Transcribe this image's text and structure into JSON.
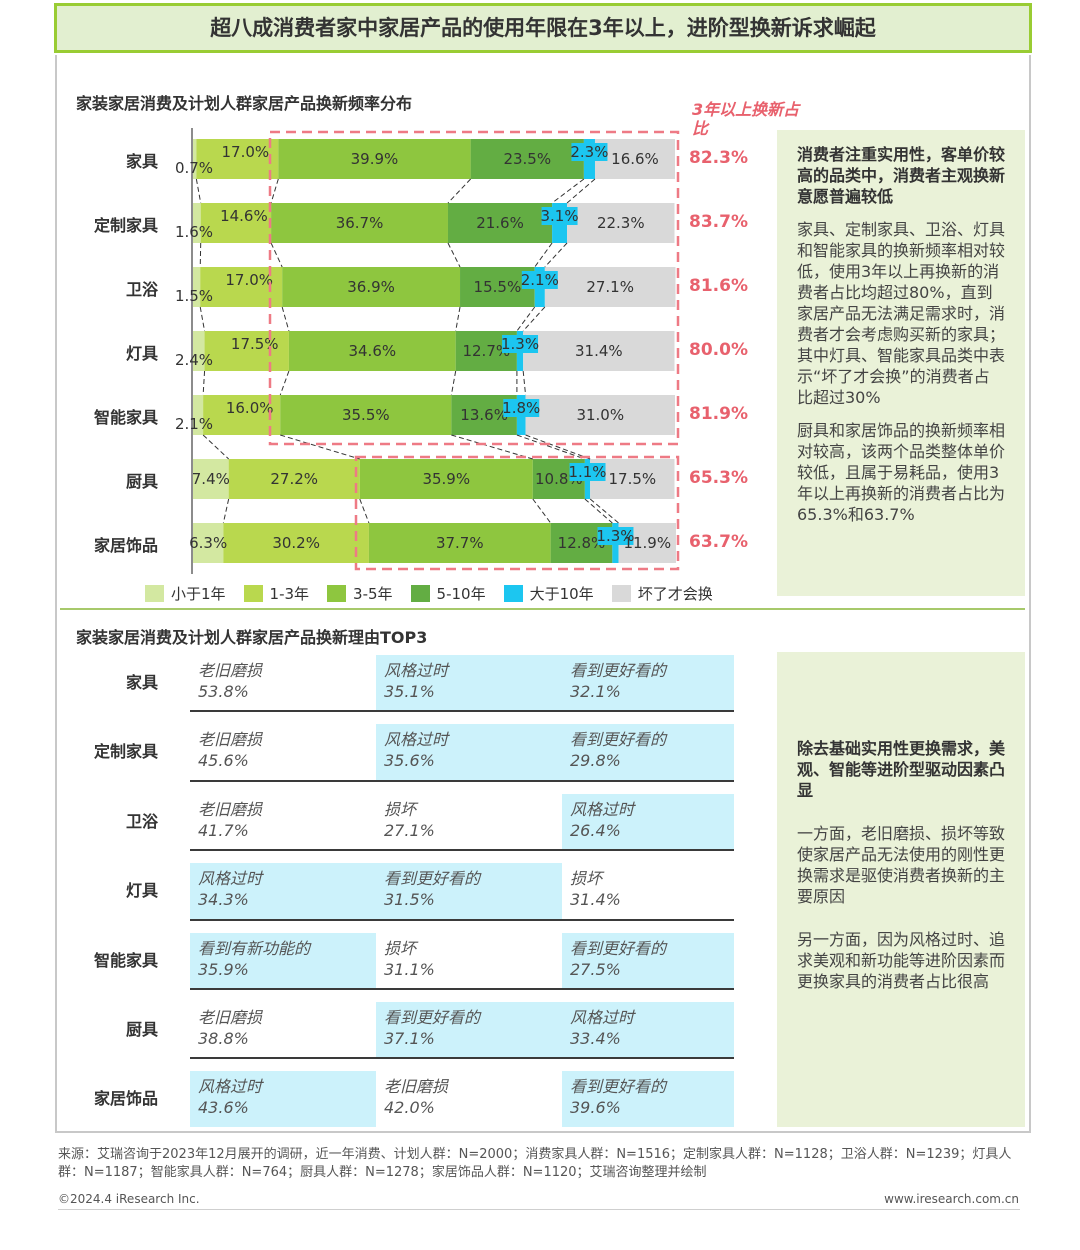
{
  "header": {
    "title": "超八成消费者家中家居产品的使用年限在3年以上，进阶型换新诉求崛起"
  },
  "chart_data": {
    "type": "bar",
    "title": "家装家居消费及计划人群家居产品换新频率分布",
    "orientation": "horizontal",
    "stacked": true,
    "categories": [
      "家具",
      "定制家具",
      "卫浴",
      "灯具",
      "智能家具",
      "厨具",
      "家居饰品"
    ],
    "series": [
      {
        "name": "小于1年",
        "color": "#d3e8a1",
        "values": [
          0.7,
          1.6,
          1.5,
          2.4,
          2.1,
          7.4,
          6.3
        ]
      },
      {
        "name": "1-3年",
        "color": "#b9d84e",
        "values": [
          17.0,
          14.6,
          17.0,
          17.5,
          16.0,
          27.2,
          30.2
        ]
      },
      {
        "name": "3-5年",
        "color": "#8ec63f",
        "values": [
          39.9,
          36.7,
          36.9,
          34.6,
          35.5,
          35.9,
          37.7
        ]
      },
      {
        "name": "5-10年",
        "color": "#63ad43",
        "values": [
          23.5,
          21.6,
          15.5,
          12.7,
          13.6,
          10.8,
          12.8
        ]
      },
      {
        "name": "大于10年",
        "color": "#1cc6f0",
        "values": [
          2.3,
          3.1,
          2.1,
          1.3,
          1.8,
          1.1,
          1.3
        ]
      },
      {
        "name": "坏了才会换",
        "color": "#d9d9d9",
        "values": [
          16.6,
          22.3,
          27.1,
          31.4,
          31.0,
          17.5,
          11.9
        ]
      }
    ],
    "value_labels": {
      "家具": [
        "0.7%",
        "17.0%",
        "39.9%",
        "23.5%",
        "2.3%",
        "16.6%"
      ],
      "定制家具": [
        "1.6%",
        "14.6%",
        "36.7%",
        "21.6%",
        "3.1%",
        "22.3%"
      ],
      "卫浴": [
        "1.5%",
        "17.0%",
        "36.9%",
        "15.5%",
        "2.1%",
        "27.1%"
      ],
      "灯具": [
        "2.4%",
        "17.5%",
        "34.6%",
        "12.7%",
        "1.3%",
        "31.4%"
      ],
      "智能家具": [
        "2.1%",
        "16.0%",
        "35.5%",
        "13.6%",
        "1.8%",
        "31.0%"
      ],
      "厨具": [
        "7.4%",
        "27.2%",
        "35.9%",
        "10.8%",
        "1.1%",
        "17.5%"
      ],
      "家居饰品": [
        "6.3%",
        "30.2%",
        "37.7%",
        "12.8%",
        "1.3%",
        "11.9%"
      ]
    },
    "three_year_plus_label": "3年以上换新占比",
    "three_year_plus": [
      "82.3%",
      "83.7%",
      "81.6%",
      "80.0%",
      "81.9%",
      "65.3%",
      "63.7%"
    ],
    "xlim": [
      0,
      100
    ],
    "legend_position": "bottom",
    "grid": false
  },
  "note1": {
    "heading": "消费者注重实用性，客单价较高的品类中，消费者主观换新意愿普遍较低",
    "p1": "家具、定制家具、卫浴、灯具和智能家具的换新频率相对较低，使用3年以上再换新的消费者占比均超过80%，直到家居产品无法满足需求时，消费者才会考虑购买新的家具；其中灯具、智能家具品类中表示“坏了才会换”的消费者占比超过30%",
    "p2": "厨具和家居饰品的换新频率相对较高，该两个品类整体单价较低，且属于易耗品，使用3年以上再换新的消费者占比为65.3%和63.7%"
  },
  "reasons": {
    "title": "家装家居消费及计划人群家居产品换新理由TOP3",
    "rows": [
      {
        "category": "家具",
        "items": [
          {
            "reason": "老旧磨损",
            "value": "53.8%",
            "hl": false
          },
          {
            "reason": "风格过时",
            "value": "35.1%",
            "hl": true
          },
          {
            "reason": "看到更好看的",
            "value": "32.1%",
            "hl": true
          }
        ]
      },
      {
        "category": "定制家具",
        "items": [
          {
            "reason": "老旧磨损",
            "value": "45.6%",
            "hl": false
          },
          {
            "reason": "风格过时",
            "value": "35.6%",
            "hl": true
          },
          {
            "reason": "看到更好看的",
            "value": "29.8%",
            "hl": true
          }
        ]
      },
      {
        "category": "卫浴",
        "items": [
          {
            "reason": "老旧磨损",
            "value": "41.7%",
            "hl": false
          },
          {
            "reason": "损坏",
            "value": "27.1%",
            "hl": false
          },
          {
            "reason": "风格过时",
            "value": "26.4%",
            "hl": true
          }
        ]
      },
      {
        "category": "灯具",
        "items": [
          {
            "reason": "风格过时",
            "value": "34.3%",
            "hl": true
          },
          {
            "reason": "看到更好看的",
            "value": "31.5%",
            "hl": true
          },
          {
            "reason": "损坏",
            "value": "31.4%",
            "hl": false
          }
        ]
      },
      {
        "category": "智能家具",
        "items": [
          {
            "reason": "看到有新功能的",
            "value": "35.9%",
            "hl": true
          },
          {
            "reason": "损坏",
            "value": "31.1%",
            "hl": false
          },
          {
            "reason": "看到更好看的",
            "value": "27.5%",
            "hl": true
          }
        ]
      },
      {
        "category": "厨具",
        "items": [
          {
            "reason": "老旧磨损",
            "value": "38.8%",
            "hl": false
          },
          {
            "reason": "看到更好看的",
            "value": "37.1%",
            "hl": true
          },
          {
            "reason": "风格过时",
            "value": "33.4%",
            "hl": true
          }
        ]
      },
      {
        "category": "家居饰品",
        "items": [
          {
            "reason": "风格过时",
            "value": "43.6%",
            "hl": true
          },
          {
            "reason": "老旧磨损",
            "value": "42.0%",
            "hl": false
          },
          {
            "reason": "看到更好看的",
            "value": "39.6%",
            "hl": true
          }
        ]
      }
    ]
  },
  "note2": {
    "heading": "除去基础实用性更换需求，美观、智能等进阶型驱动因素凸显",
    "p1": "一方面，老旧磨损、损坏等致使家居产品无法使用的刚性更换需求是驱使消费者换新的主要原因",
    "p2": "另一方面，因为风格过时、追求美观和新功能等进阶因素而更换家具的消费者占比很高"
  },
  "footer": {
    "source": "来源：艾瑞咨询于2023年12月展开的调研，近一年消费、计划人群：N=2000；消费家具人群：N=1516；定制家具人群：N=1128；卫浴人群：N=1239；灯具人群：N=1187；智能家具人群：N=764；厨具人群：N=1278；家居饰品人群：N=1120；艾瑞咨询整理并绘制",
    "copyright": "©2024.4 iResearch Inc.",
    "website": "www.iresearch.com.cn"
  }
}
